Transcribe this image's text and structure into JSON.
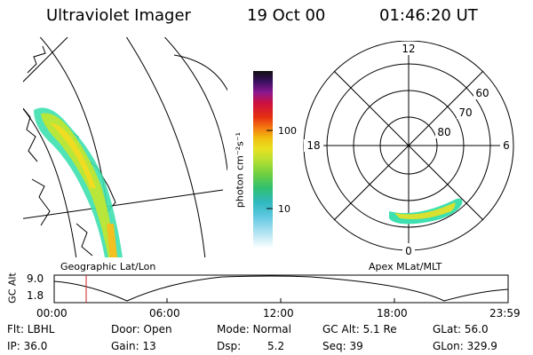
{
  "header": {
    "title": "Ultraviolet Imager",
    "date": "19 Oct 00",
    "time": "01:46:20 UT"
  },
  "left_panel": {
    "label": "Geographic Lat/Lon"
  },
  "right_panel": {
    "label": "Apex MLat/MLT",
    "mlt_labels": {
      "top": "12",
      "right": "6",
      "bottom": "0",
      "left": "18"
    },
    "lat_labels": [
      "60",
      "70",
      "80"
    ]
  },
  "colorbar": {
    "unit_label": "photon cm⁻²s⁻¹",
    "ticks": [
      "100",
      "10"
    ]
  },
  "altitude_plot": {
    "axis_label": "GC Alt",
    "y_ticks": [
      "9.0",
      "1.8"
    ],
    "x_ticks": [
      "00:00",
      "06:00",
      "12:00",
      "18:00",
      "23:59"
    ]
  },
  "status": {
    "row1": [
      "Flt: LBHL",
      "Door: Open",
      "Mode: Normal",
      "GC Alt: 5.1 Re",
      "GLat:  56.0"
    ],
    "row2": [
      "IP: 36.0",
      "Gain: 13",
      "Dsp:",
      "5.2",
      "Seq: 39",
      "GLon: 329.9"
    ]
  }
}
